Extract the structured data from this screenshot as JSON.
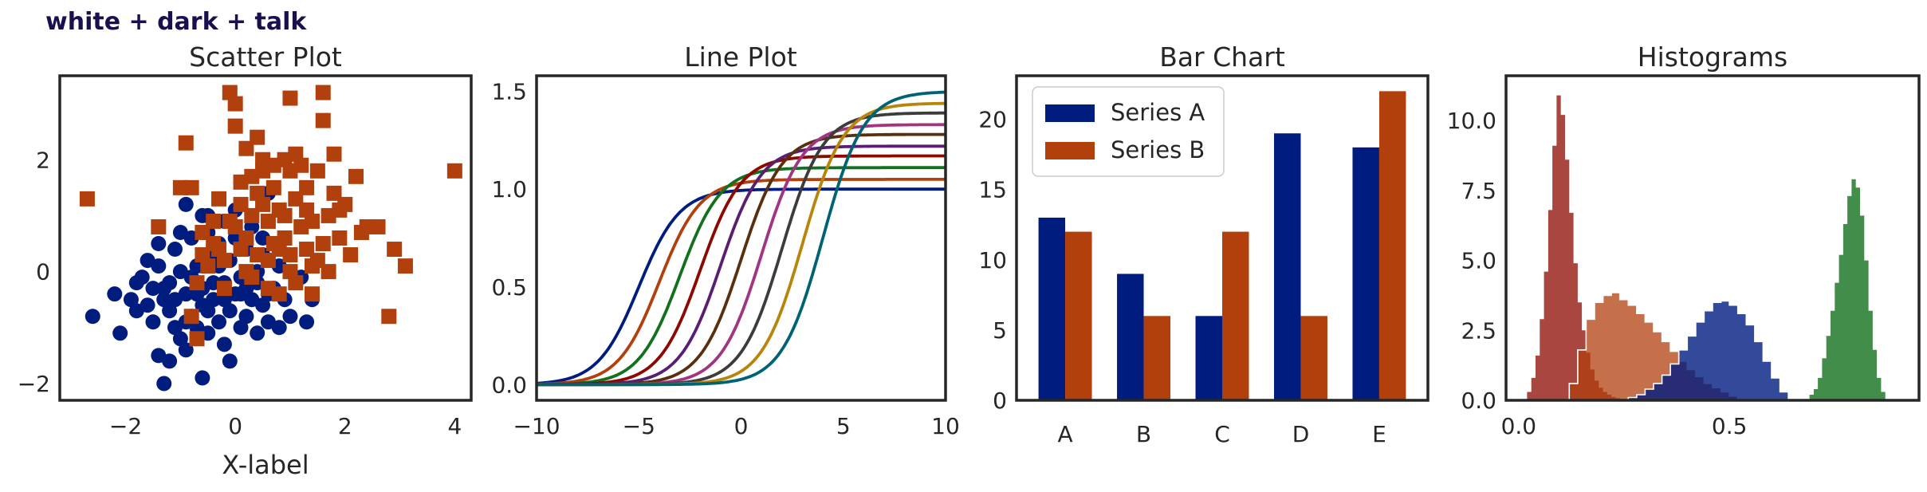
{
  "figure": {
    "suptitle": "white + dark + talk"
  },
  "colors": {
    "blue": "#001c7f",
    "orange": "#b1400d",
    "green": "#12711c",
    "red": "#8c0800",
    "purple": "#591e71",
    "brown": "#592f0d",
    "pink": "#a23582",
    "gray": "#3c3c3c",
    "olive": "#b8850a",
    "cyan": "#006374"
  },
  "chart_data": [
    {
      "type": "scatter",
      "title": "Scatter Plot",
      "xlabel": "X-label",
      "ylabel": "",
      "xlim": [
        -3.2,
        4.3
      ],
      "ylim": [
        -2.3,
        3.5
      ],
      "xticks": [
        -2,
        0,
        2,
        4
      ],
      "yticks": [
        -2,
        0,
        2
      ],
      "xtick_labels": [
        "−2",
        "0",
        "2",
        "4"
      ],
      "ytick_labels": [
        "−2",
        "0",
        "2"
      ],
      "series": [
        {
          "marker": "circle",
          "color": "#001c7f",
          "points": [
            [
              -2.6,
              -0.8
            ],
            [
              -2.1,
              -1.1
            ],
            [
              -1.9,
              -0.5
            ],
            [
              -1.8,
              -0.2
            ],
            [
              -1.6,
              -0.6
            ],
            [
              -1.5,
              -0.9
            ],
            [
              -1.4,
              -1.5
            ],
            [
              -1.4,
              0.1
            ],
            [
              -1.3,
              -0.3
            ],
            [
              -1.2,
              -0.7
            ],
            [
              -1.1,
              0.4
            ],
            [
              -1.1,
              -1.0
            ],
            [
              -1.0,
              -1.2
            ],
            [
              -1.0,
              0.0
            ],
            [
              -0.9,
              -0.4
            ],
            [
              -0.9,
              -1.4
            ],
            [
              -0.8,
              0.6
            ],
            [
              -0.8,
              -0.8
            ],
            [
              -0.7,
              -1.0
            ],
            [
              -0.7,
              0.1
            ],
            [
              -0.6,
              1.0
            ],
            [
              -0.6,
              -0.3
            ],
            [
              -0.6,
              -0.6
            ],
            [
              -0.5,
              0.7
            ],
            [
              -0.5,
              -1.1
            ],
            [
              -0.4,
              0.3
            ],
            [
              -0.4,
              -0.5
            ],
            [
              -0.3,
              -0.9
            ],
            [
              -0.3,
              0.5
            ],
            [
              -0.2,
              -0.2
            ],
            [
              -0.2,
              -1.3
            ],
            [
              -0.2,
              0.9
            ],
            [
              -0.1,
              -0.7
            ],
            [
              -0.1,
              0.2
            ],
            [
              0.0,
              -0.4
            ],
            [
              0.0,
              0.6
            ],
            [
              0.1,
              -1.0
            ],
            [
              0.1,
              -0.1
            ],
            [
              0.2,
              0.4
            ],
            [
              0.2,
              -0.8
            ],
            [
              0.3,
              -0.5
            ],
            [
              0.3,
              0.8
            ],
            [
              0.4,
              -0.2
            ],
            [
              0.4,
              -1.1
            ],
            [
              0.5,
              0.3
            ],
            [
              0.5,
              -0.6
            ],
            [
              0.6,
              1.4
            ],
            [
              0.6,
              -0.9
            ],
            [
              0.7,
              -0.3
            ],
            [
              0.8,
              0.1
            ],
            [
              0.9,
              -0.5
            ],
            [
              1.0,
              -0.8
            ],
            [
              1.2,
              -0.1
            ],
            [
              1.3,
              -0.9
            ],
            [
              -1.7,
              -0.1
            ],
            [
              -1.2,
              -0.2
            ],
            [
              -0.8,
              -0.1
            ],
            [
              -0.4,
              -0.2
            ],
            [
              -1.3,
              -0.5
            ],
            [
              -0.9,
              -0.9
            ],
            [
              -0.5,
              -0.7
            ],
            [
              -0.2,
              -0.5
            ],
            [
              0.1,
              -0.4
            ],
            [
              -1.6,
              0.2
            ],
            [
              -1.0,
              0.7
            ],
            [
              -0.3,
              0.1
            ],
            [
              0.4,
              0.0
            ],
            [
              -2.2,
              -0.4
            ],
            [
              -1.8,
              -0.7
            ],
            [
              -1.5,
              -0.3
            ],
            [
              -1.1,
              -0.5
            ],
            [
              -0.7,
              -0.4
            ],
            [
              0.2,
              -0.3
            ],
            [
              0.6,
              -0.4
            ],
            [
              -1.2,
              -1.6
            ],
            [
              -0.6,
              -1.9
            ],
            [
              -1.3,
              -2.0
            ],
            [
              -0.9,
              1.2
            ],
            [
              0.0,
              1.1
            ],
            [
              -0.5,
              1.0
            ],
            [
              -1.4,
              0.5
            ],
            [
              0.8,
              -1.0
            ],
            [
              1.4,
              -0.5
            ],
            [
              -0.1,
              -1.6
            ],
            [
              0.5,
              0.6
            ]
          ]
        },
        {
          "marker": "square",
          "color": "#b1400d",
          "points": [
            [
              -2.7,
              1.3
            ],
            [
              -1.4,
              0.8
            ],
            [
              -1.0,
              1.5
            ],
            [
              -0.9,
              2.3
            ],
            [
              -0.8,
              1.5
            ],
            [
              -0.7,
              -0.2
            ],
            [
              -0.6,
              0.7
            ],
            [
              -0.5,
              0.1
            ],
            [
              -0.4,
              0.5
            ],
            [
              -0.3,
              1.3
            ],
            [
              -0.3,
              0.4
            ],
            [
              -0.2,
              0.2
            ],
            [
              -0.1,
              3.2
            ],
            [
              -0.1,
              0.9
            ],
            [
              0.0,
              2.6
            ],
            [
              0.0,
              3.0
            ],
            [
              0.1,
              0.4
            ],
            [
              0.1,
              1.2
            ],
            [
              0.2,
              2.2
            ],
            [
              0.2,
              0.6
            ],
            [
              0.3,
              1.0
            ],
            [
              0.3,
              -0.1
            ],
            [
              0.4,
              1.4
            ],
            [
              0.4,
              0.3
            ],
            [
              0.5,
              1.8
            ],
            [
              0.5,
              2.0
            ],
            [
              0.6,
              0.9
            ],
            [
              0.6,
              0.2
            ],
            [
              0.7,
              1.5
            ],
            [
              0.7,
              0.5
            ],
            [
              0.8,
              1.1
            ],
            [
              0.8,
              -0.4
            ],
            [
              0.9,
              2.0
            ],
            [
              0.9,
              0.6
            ],
            [
              1.0,
              1.8
            ],
            [
              1.0,
              0.3
            ],
            [
              1.1,
              1.3
            ],
            [
              1.1,
              -0.2
            ],
            [
              1.2,
              0.8
            ],
            [
              1.2,
              1.9
            ],
            [
              1.3,
              0.4
            ],
            [
              1.3,
              1.5
            ],
            [
              1.4,
              -0.4
            ],
            [
              1.4,
              0.9
            ],
            [
              1.5,
              1.8
            ],
            [
              1.5,
              0.2
            ],
            [
              1.6,
              3.2
            ],
            [
              1.6,
              2.7
            ],
            [
              1.7,
              1.0
            ],
            [
              1.7,
              0.0
            ],
            [
              1.8,
              1.4
            ],
            [
              1.8,
              2.1
            ],
            [
              1.9,
              0.6
            ],
            [
              2.0,
              1.2
            ],
            [
              2.1,
              0.3
            ],
            [
              2.2,
              1.7
            ],
            [
              2.3,
              0.7
            ],
            [
              2.4,
              0.8
            ],
            [
              2.6,
              0.8
            ],
            [
              2.9,
              0.4
            ],
            [
              3.1,
              0.1
            ],
            [
              2.8,
              -0.8
            ],
            [
              4.0,
              1.8
            ],
            [
              1.0,
              3.1
            ],
            [
              0.4,
              2.4
            ],
            [
              -0.6,
              0.3
            ],
            [
              -0.2,
              -0.3
            ],
            [
              0.2,
              0.0
            ],
            [
              0.6,
              -0.3
            ],
            [
              1.0,
              0.0
            ],
            [
              1.4,
              0.1
            ],
            [
              -0.8,
              -0.8
            ],
            [
              -0.7,
              -1.2
            ],
            [
              0.1,
              1.6
            ],
            [
              0.5,
              1.2
            ],
            [
              0.9,
              1.0
            ],
            [
              1.3,
              1.1
            ],
            [
              0.0,
              0.8
            ],
            [
              0.3,
              1.7
            ],
            [
              0.7,
              1.9
            ],
            [
              1.1,
              2.1
            ],
            [
              -0.4,
              0.9
            ],
            [
              0.8,
              0.4
            ],
            [
              1.6,
              0.5
            ],
            [
              1.9,
              1.1
            ]
          ]
        }
      ]
    },
    {
      "type": "line",
      "title": "Line Plot",
      "xlabel": "",
      "ylabel": "",
      "xlim": [
        -10,
        10
      ],
      "ylim": [
        -0.08,
        1.58
      ],
      "xticks": [
        -10,
        -5,
        0,
        5,
        10
      ],
      "yticks": [
        0.0,
        0.5,
        1.0,
        1.5
      ],
      "xtick_labels": [
        "−10",
        "−5",
        "0",
        "5",
        "10"
      ],
      "ytick_labels": [
        "0.0",
        "0.5",
        "1.0",
        "1.5"
      ],
      "series": [
        {
          "center": -5.0,
          "amplitude": 1.0,
          "color": "#001c7f"
        },
        {
          "center": -4.0,
          "amplitude": 1.05,
          "color": "#b1400d"
        },
        {
          "center": -3.0,
          "amplitude": 1.11,
          "color": "#12711c"
        },
        {
          "center": -2.0,
          "amplitude": 1.17,
          "color": "#8c0800"
        },
        {
          "center": -1.0,
          "amplitude": 1.22,
          "color": "#591e71"
        },
        {
          "center": 0.0,
          "amplitude": 1.28,
          "color": "#592f0d"
        },
        {
          "center": 1.0,
          "amplitude": 1.33,
          "color": "#a23582"
        },
        {
          "center": 2.0,
          "amplitude": 1.39,
          "color": "#3c3c3c"
        },
        {
          "center": 3.0,
          "amplitude": 1.44,
          "color": "#b8850a"
        },
        {
          "center": 4.0,
          "amplitude": 1.5,
          "color": "#006374"
        }
      ]
    },
    {
      "type": "bar",
      "title": "Bar Chart",
      "xlabel": "",
      "ylabel": "",
      "categories": [
        "A",
        "B",
        "C",
        "D",
        "E"
      ],
      "ylim": [
        0,
        23.1
      ],
      "yticks": [
        0,
        5,
        10,
        15,
        20
      ],
      "ytick_labels": [
        "0",
        "5",
        "10",
        "15",
        "20"
      ],
      "legend": "top-left",
      "series": [
        {
          "name": "Series A",
          "values": [
            13,
            9,
            6,
            19,
            18
          ],
          "color": "#001c7f"
        },
        {
          "name": "Series B",
          "values": [
            12,
            6,
            12,
            6,
            22
          ],
          "color": "#b1400d"
        }
      ]
    },
    {
      "type": "area",
      "subtype": "histogram",
      "title": "Histograms",
      "xlabel": "",
      "ylabel": "",
      "xlim": [
        -0.03,
        0.95
      ],
      "ylim": [
        0,
        11.6
      ],
      "xticks": [
        0.0,
        0.5
      ],
      "yticks": [
        0.0,
        2.5,
        5.0,
        7.5,
        10.0
      ],
      "xtick_labels": [
        "0.0",
        "0.5"
      ],
      "ytick_labels": [
        "0.0",
        "2.5",
        "5.0",
        "7.5",
        "10.0"
      ],
      "series": [
        {
          "color": "#8c0800",
          "alpha": 0.75,
          "edge": false,
          "bin_width": 0.01,
          "start": 0.02,
          "values": [
            0.3,
            0.8,
            1.6,
            2.9,
            4.6,
            6.8,
            9.1,
            10.9,
            10.2,
            8.6,
            6.7,
            4.9,
            3.5,
            2.5,
            1.7,
            1.1,
            0.7,
            0.45,
            0.3,
            0.2,
            0.12,
            0.08,
            0.05
          ]
        },
        {
          "color": "#b1400d",
          "alpha": 0.75,
          "edge": true,
          "bin_width": 0.02,
          "start": 0.12,
          "values": [
            0.6,
            1.8,
            2.9,
            3.5,
            3.75,
            3.85,
            3.6,
            3.4,
            3.1,
            2.8,
            2.45,
            2.1,
            1.75,
            1.4,
            1.1,
            0.85,
            0.6,
            0.45,
            0.3,
            0.15,
            0.05
          ]
        },
        {
          "color": "#001c7f",
          "alpha": 0.8,
          "edge": true,
          "bin_width": 0.02,
          "start": 0.26,
          "values": [
            0.1,
            0.2,
            0.4,
            0.6,
            0.9,
            1.3,
            1.8,
            2.3,
            2.8,
            3.2,
            3.5,
            3.55,
            3.4,
            3.1,
            2.7,
            2.1,
            1.4,
            0.8,
            0.3
          ]
        },
        {
          "color": "#12711c",
          "alpha": 0.8,
          "edge": false,
          "bin_width": 0.01,
          "start": 0.69,
          "values": [
            0.2,
            0.4,
            0.8,
            1.5,
            2.3,
            3.2,
            4.2,
            5.2,
            6.3,
            7.3,
            7.9,
            7.6,
            6.6,
            5.0,
            3.2,
            1.8,
            0.8,
            0.3
          ]
        }
      ]
    }
  ]
}
